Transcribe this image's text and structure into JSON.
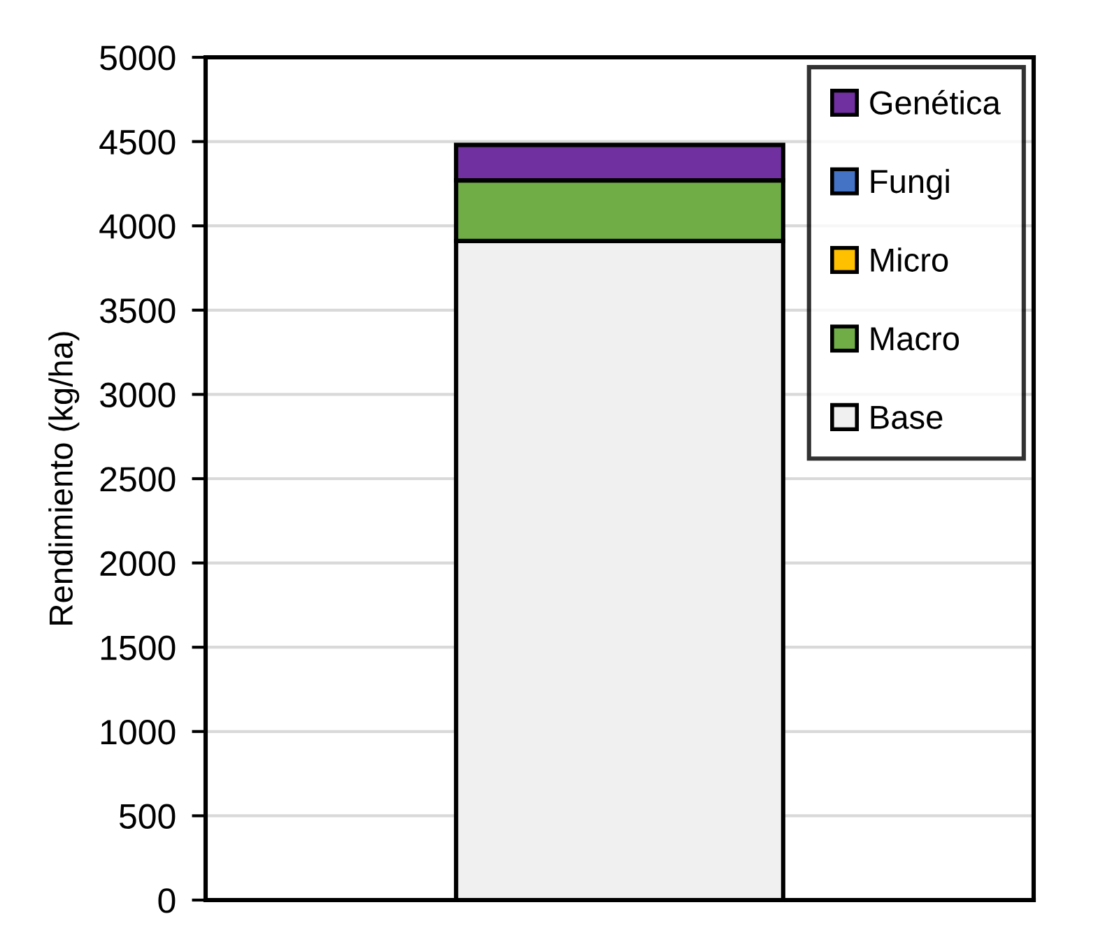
{
  "chart_data": {
    "type": "bar",
    "stacked": true,
    "ylabel": "Rendimiento (kg/ha)",
    "categories": [
      null
    ],
    "series": [
      {
        "name": "Base",
        "color": "#f0f0f0",
        "values": [
          3910
        ]
      },
      {
        "name": "Macro",
        "color": "#70ad47",
        "values": [
          360
        ]
      },
      {
        "name": "Micro",
        "color": "#ffc000",
        "values": [
          0
        ]
      },
      {
        "name": "Fungi",
        "color": "#4472c4",
        "values": [
          0
        ]
      },
      {
        "name": "Genética",
        "color": "#7030a0",
        "values": [
          210
        ]
      }
    ],
    "ylim": [
      0,
      5000
    ],
    "yticks": [
      0,
      500,
      1000,
      1500,
      2000,
      2500,
      3000,
      3500,
      4000,
      4500,
      5000
    ],
    "grid": "y",
    "legend": "top right"
  }
}
